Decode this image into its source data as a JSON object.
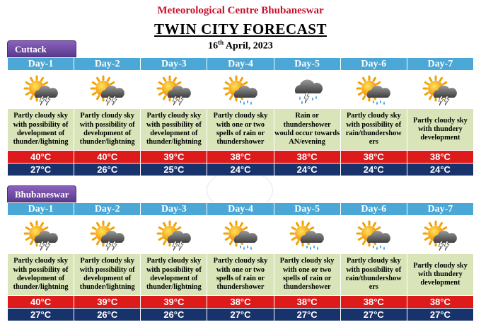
{
  "header": {
    "org": "Meteorological Centre Bhubaneswar",
    "title": "TWIN CITY FORECAST",
    "date_day": "16",
    "date_suffix": "th",
    "date_rest": " April, 2023"
  },
  "cities": [
    {
      "name": "Cuttack",
      "days": [
        {
          "label": "Day-1",
          "icon": "sun-cloud-thunder-icon",
          "desc": "Partly cloudy sky with possibility of development of thunder/lightning",
          "max": "40°C",
          "min": "27°C"
        },
        {
          "label": "Day-2",
          "icon": "sun-cloud-thunder-icon",
          "desc": "Partly cloudy sky with possibility of development of thunder/lightning",
          "max": "40°C",
          "min": "26°C"
        },
        {
          "label": "Day-3",
          "icon": "sun-cloud-thunder-icon",
          "desc": "Partly cloudy sky with possibility of development of thunder/lightning",
          "max": "39°C",
          "min": "25°C"
        },
        {
          "label": "Day-4",
          "icon": "sun-cloud-rain-icon",
          "desc": "Partly cloudy sky with one or two spells of rain or thundershower",
          "max": "38°C",
          "min": "24°C"
        },
        {
          "label": "Day-5",
          "icon": "cloud-thunder-rain-icon",
          "desc": "Rain or thundershower would occur towards AN/evening",
          "max": "38°C",
          "min": "24°C"
        },
        {
          "label": "Day-6",
          "icon": "sun-cloud-rain-icon",
          "desc": "Partly cloudy sky with possibility of rain/thundershow ers",
          "max": "38°C",
          "min": "24°C"
        },
        {
          "label": "Day-7",
          "icon": "sun-cloud-thunder-icon",
          "desc": "Partly cloudy sky with thundery development",
          "max": "38°C",
          "min": "24°C"
        }
      ]
    },
    {
      "name": "Bhubaneswar",
      "days": [
        {
          "label": "Day-1",
          "icon": "sun-cloud-thunder-icon",
          "desc": "Partly cloudy sky with possibility of development of thunder/lightning",
          "max": "40°C",
          "min": "27°C"
        },
        {
          "label": "Day-2",
          "icon": "sun-cloud-thunder-icon",
          "desc": "Partly cloudy sky with possibility of development of thunder/lightning",
          "max": "39°C",
          "min": "26°C"
        },
        {
          "label": "Day-3",
          "icon": "sun-cloud-thunder-icon",
          "desc": "Partly cloudy sky with possibility of development of thunder/lightning",
          "max": "39°C",
          "min": "26°C"
        },
        {
          "label": "Day-4",
          "icon": "sun-cloud-rain-icon",
          "desc": "Partly cloudy sky with one or two spells of rain or thundershower",
          "max": "38°C",
          "min": "27°C"
        },
        {
          "label": "Day-5",
          "icon": "sun-cloud-rain-icon",
          "desc": "Partly cloudy sky with one or two spells of rain or thundershower",
          "max": "38°C",
          "min": "27°C"
        },
        {
          "label": "Day-6",
          "icon": "sun-cloud-rain-icon",
          "desc": "Partly cloudy sky with possibility of rain/thundershow ers",
          "max": "38°C",
          "min": "27°C"
        },
        {
          "label": "Day-7",
          "icon": "sun-cloud-thunder-icon",
          "desc": "Partly cloudy sky with thundery development",
          "max": "38°C",
          "min": "27°C"
        }
      ]
    }
  ],
  "colors": {
    "org_text": "#c8102e",
    "day_header": "#4aa7d6",
    "description_bg": "#d9e5b9",
    "max_temp_bg": "#dd1b1b",
    "min_temp_bg": "#18326b",
    "city_tab": "#6b4aa0"
  }
}
